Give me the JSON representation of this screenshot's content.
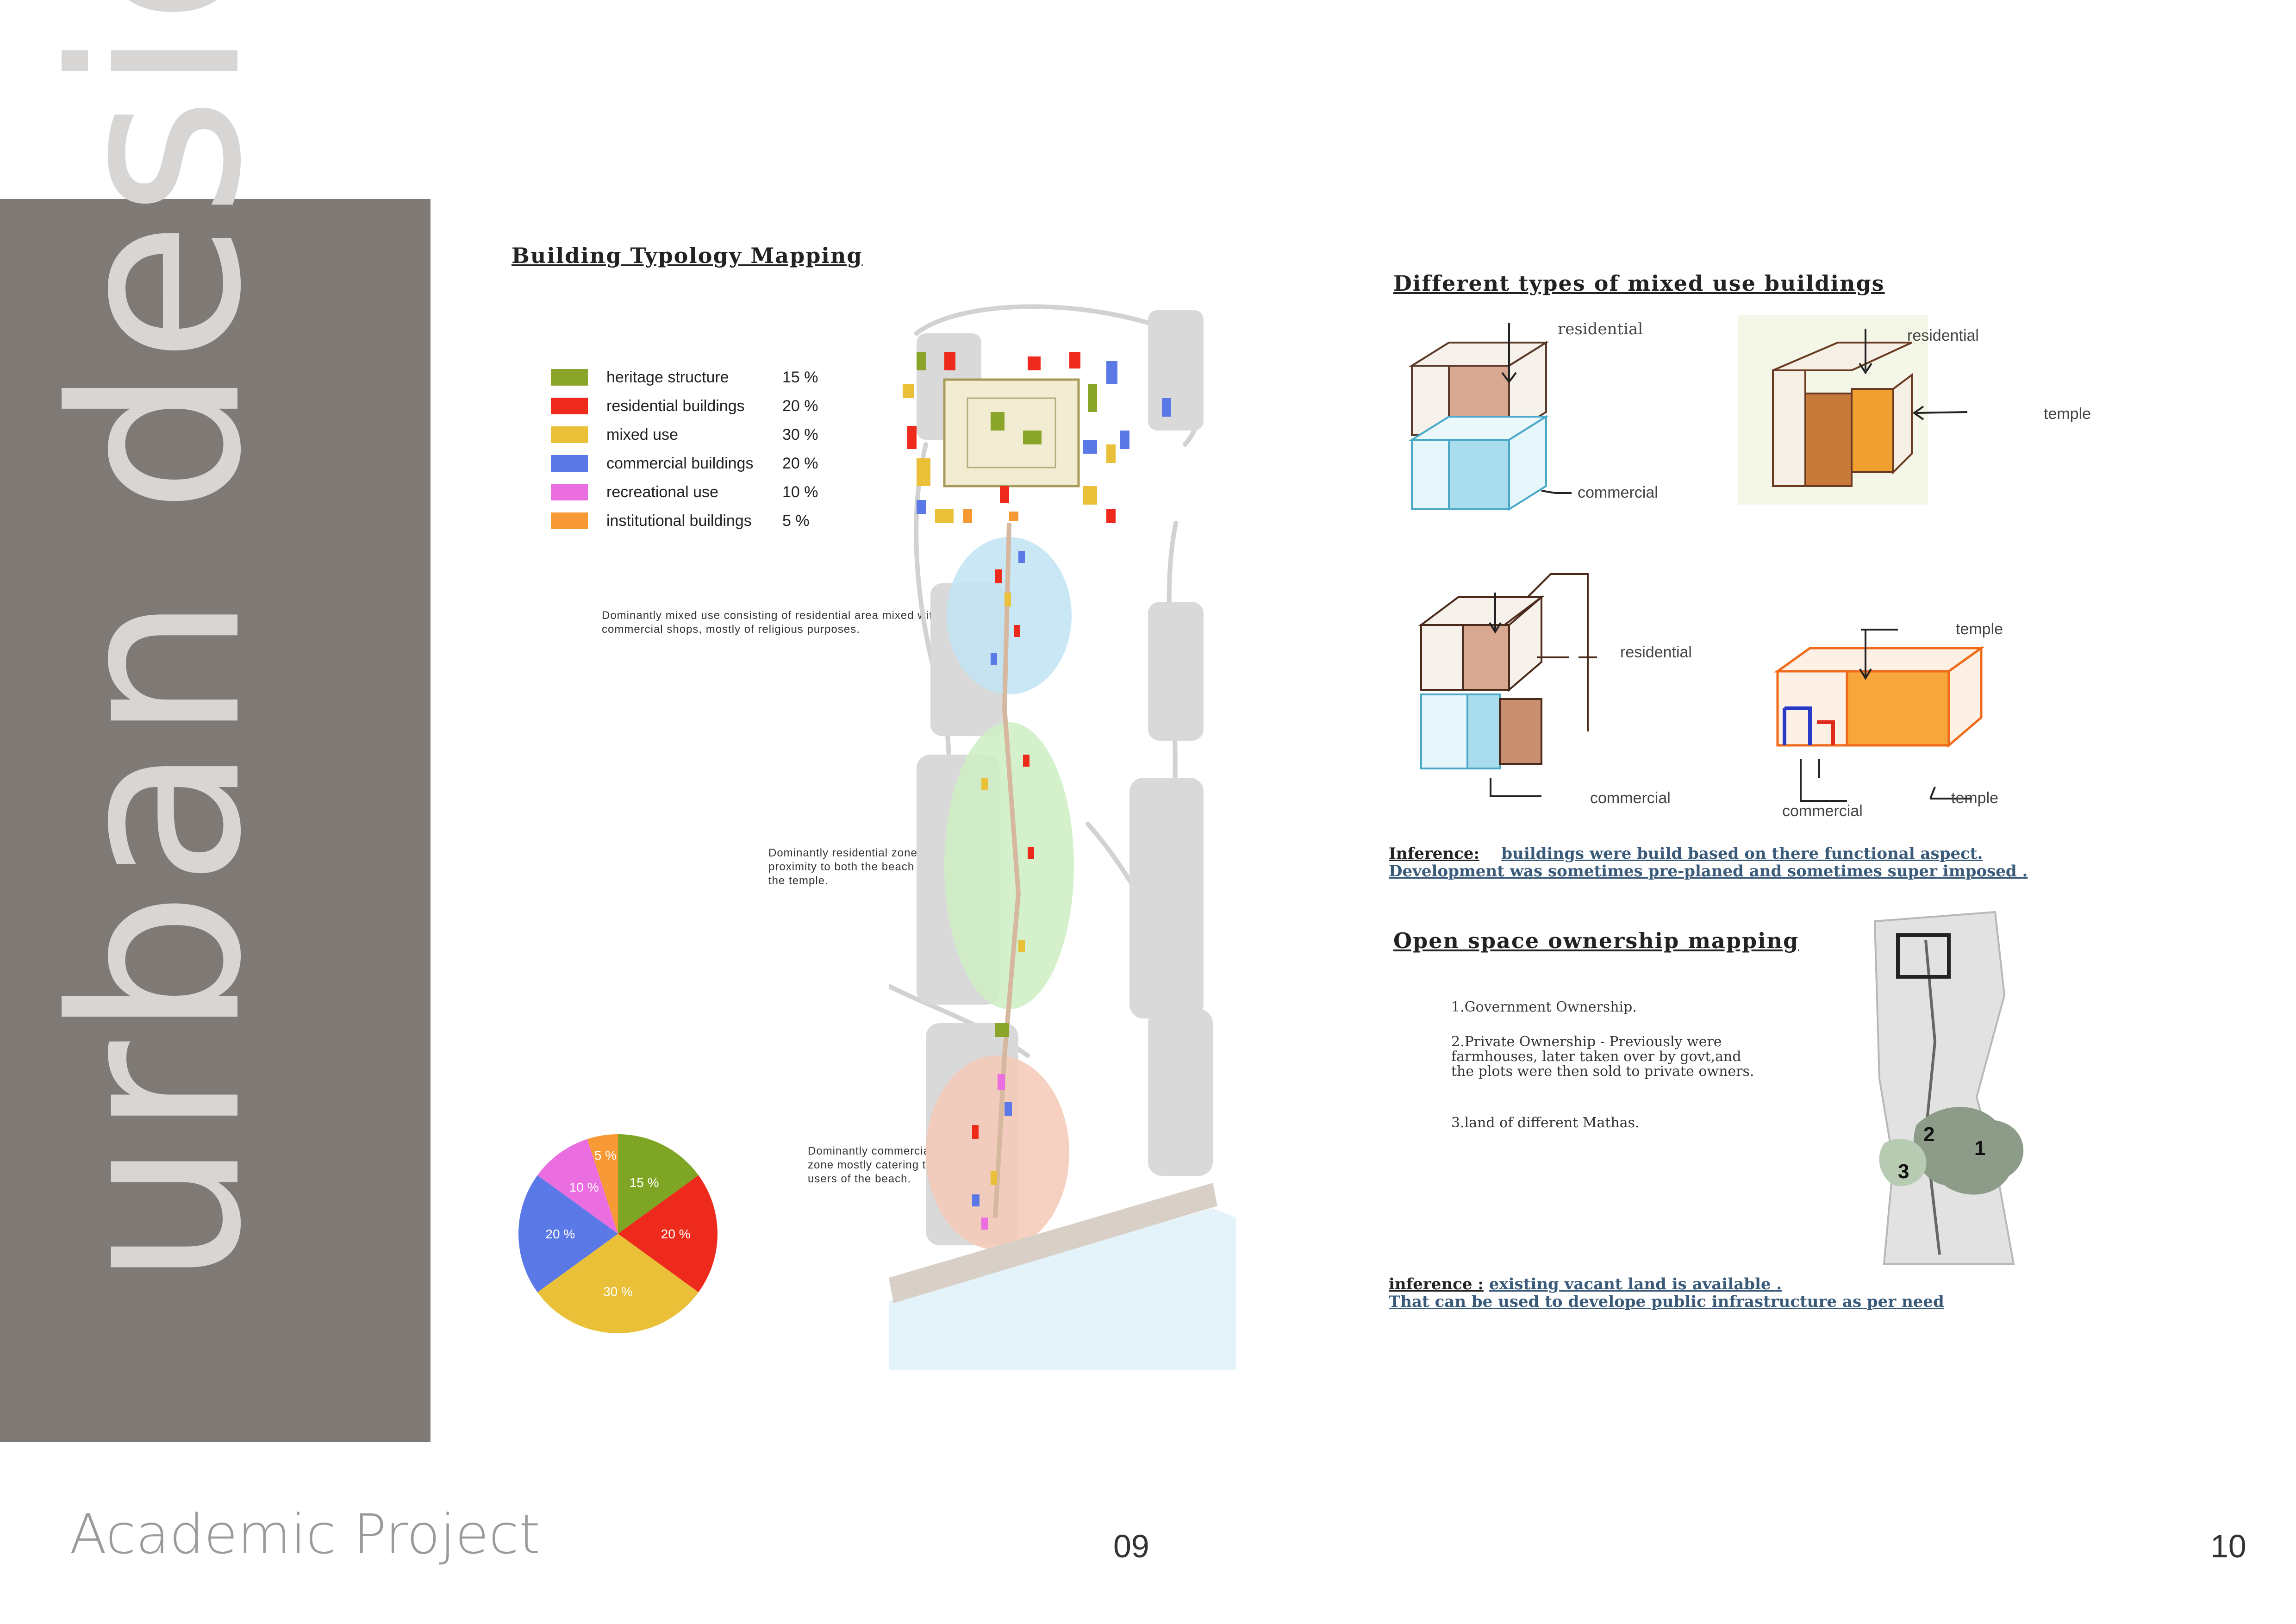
{
  "sidebar": {
    "title": "urban design",
    "footer": "Academic Project"
  },
  "pages": {
    "left": "09",
    "right": "10"
  },
  "typology": {
    "title": "Building Typology Mapping",
    "legend": [
      {
        "label": "heritage structure",
        "pct": "15 %",
        "color": "#8ba52b"
      },
      {
        "label": "residential buildings",
        "pct": "20 %",
        "color": "#ee2a1c"
      },
      {
        "label": "mixed use",
        "pct": "30 %",
        "color": "#e9c038"
      },
      {
        "label": "commercial buildings",
        "pct": "20 %",
        "color": "#5b79e6"
      },
      {
        "label": "recreational use",
        "pct": "10 %",
        "color": "#ea6ee0"
      },
      {
        "label": "institutional buildings",
        "pct": "5 %",
        "color": "#f79a35"
      }
    ],
    "notes": {
      "mixed": "Dominantly mixed use consisting of residential area mixed with commercial shops, mostly of religious purposes.",
      "residential": "Dominantly residential zone in proximity to both the beach and the temple.",
      "commercial": "Dominantly commercial zone mostly catering to users of the beach."
    }
  },
  "chart_data": {
    "type": "pie",
    "series": [
      {
        "label": "15 %",
        "value": 15,
        "color": "#7ea624"
      },
      {
        "label": "20 %",
        "value": 20,
        "color": "#ee2a1c"
      },
      {
        "label": "30 %",
        "value": 30,
        "color": "#e9c038"
      },
      {
        "label": "20 %",
        "value": 20,
        "color": "#5b79e6"
      },
      {
        "label": "10 %",
        "value": 10,
        "color": "#ea6ee0"
      },
      {
        "label": "5 %",
        "value": 5,
        "color": "#f79a35"
      }
    ]
  },
  "mixed_use": {
    "title": "Different types of mixed use buildings",
    "labels": {
      "s1_top": "residential",
      "s1_bottom": "commercial",
      "s2_top": "residential",
      "s2_right": "temple",
      "s3_top": "residential",
      "s3_bottom": "commercial",
      "s4_top": "temple",
      "s4_right": "temple",
      "s4_bottom": "commercial"
    },
    "inference": {
      "key": "Inference:",
      "line1": "buildings were build based on there functional aspect.",
      "line2": "Development was sometimes pre-planed and sometimes super imposed ."
    }
  },
  "ownership": {
    "title": "Open space ownership mapping",
    "items": [
      "1.Government Ownership.",
      "2.Private Ownership - Previously were farmhouses, later taken over by govt,and the plots were then sold to private owners.",
      "3.land of different Mathas."
    ],
    "map_numbers": [
      "2",
      "1",
      "3"
    ],
    "inference": {
      "key": "inference :",
      "line1": "existing vacant land is available .",
      "line2": "That can be used to develope public infrastructure as per need"
    }
  }
}
